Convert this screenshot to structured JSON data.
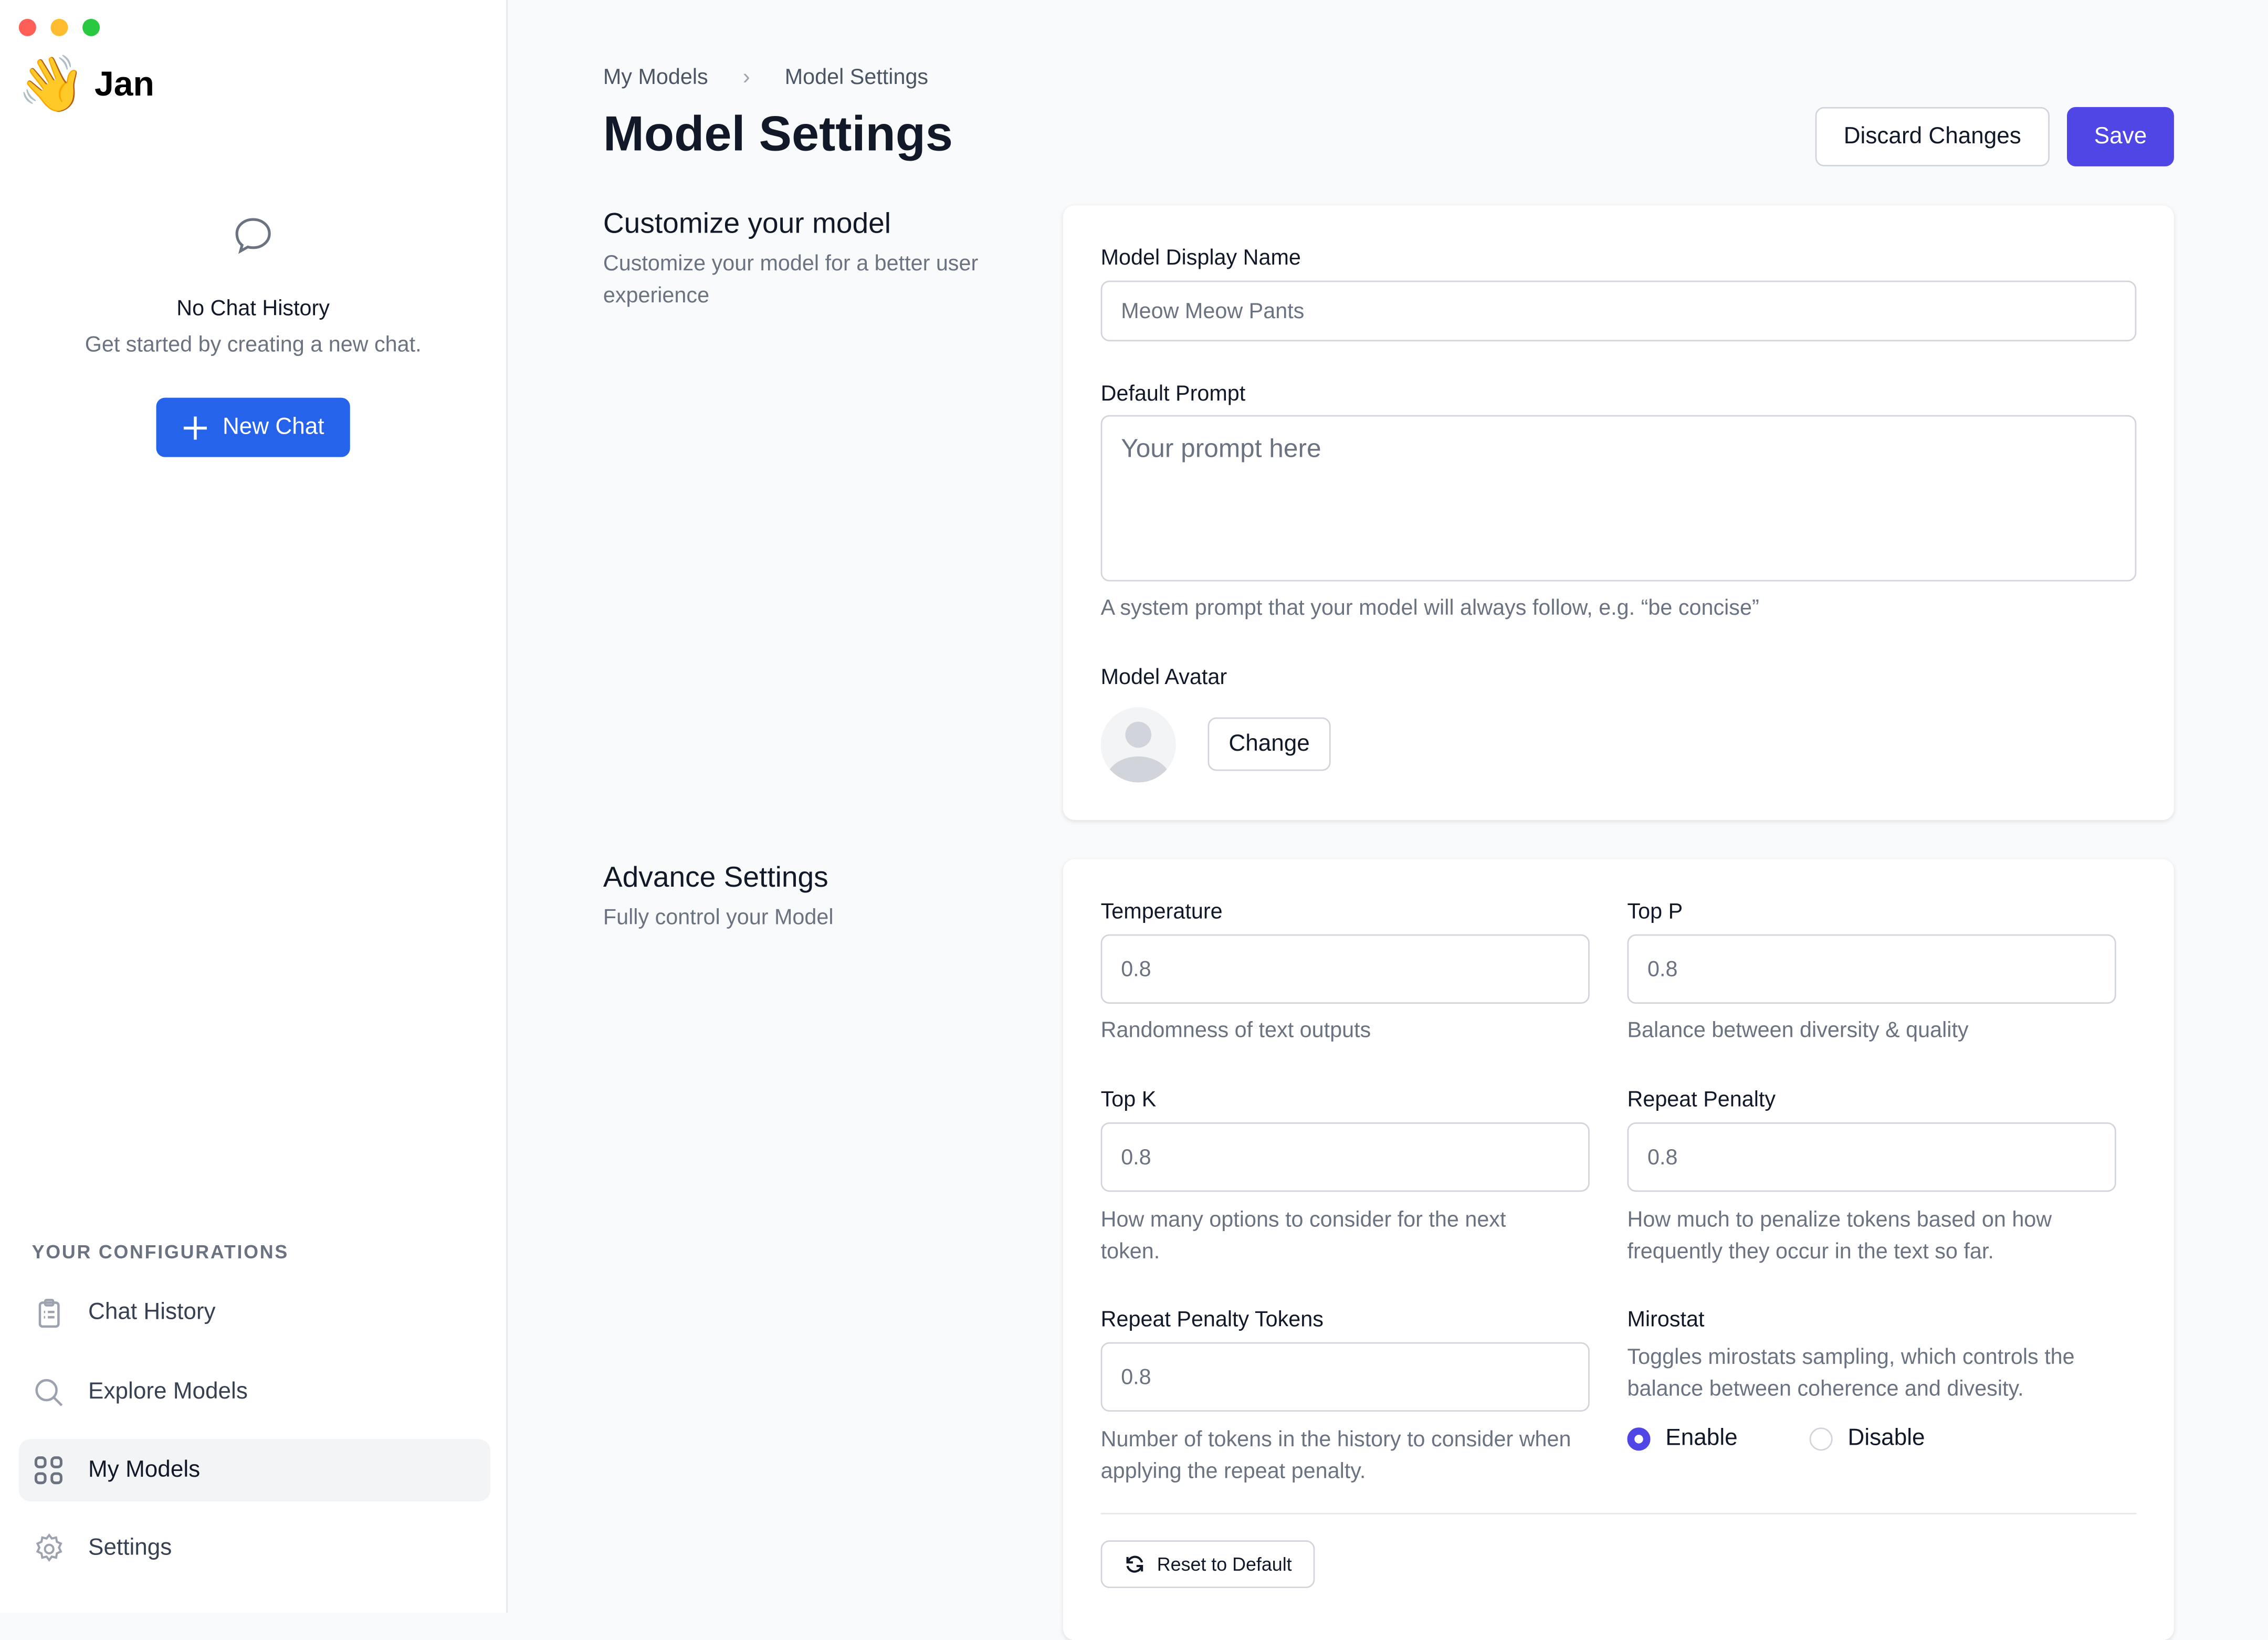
{
  "window": {
    "controls": [
      "#ff5f57",
      "#febc2e",
      "#28c840"
    ]
  },
  "sidebar": {
    "app_name": "Jan",
    "logo_emoji": "👋",
    "empty_title": "No Chat History",
    "empty_subtitle": "Get started by creating a new chat.",
    "new_chat": "New Chat",
    "section": "YOUR CONFIGURATIONS",
    "items": [
      {
        "label": "Chat History",
        "icon": "clipboard-icon"
      },
      {
        "label": "Explore Models",
        "icon": "search-icon"
      },
      {
        "label": "My Models",
        "icon": "grid-icon",
        "active": true
      },
      {
        "label": "Settings",
        "icon": "gear-icon"
      }
    ]
  },
  "header": {
    "breadcrumb": [
      "My Models",
      "Model Settings"
    ],
    "title": "Model Settings",
    "discard": "Discard Changes",
    "save": "Save"
  },
  "customize": {
    "title": "Customize your model",
    "subtitle": "Customize your model for a better user experience",
    "display_name_label": "Model Display Name",
    "display_name_value": "Meow Meow Pants",
    "prompt_label": "Default Prompt",
    "prompt_placeholder": "Your prompt here",
    "prompt_hint": "A system prompt that your model will always follow, e.g. “be concise”",
    "avatar_label": "Model Avatar",
    "change": "Change"
  },
  "advanced": {
    "title": "Advance Settings",
    "subtitle": "Fully control your Model",
    "temperature": {
      "label": "Temperature",
      "value": "0.8",
      "hint": "Randomness of text outputs"
    },
    "top_p": {
      "label": "Top P",
      "value": "0.8",
      "hint": "Balance between diversity & quality"
    },
    "top_k": {
      "label": "Top K",
      "value": "0.8",
      "hint": "How many options to consider for the next token."
    },
    "repeat_penalty": {
      "label": "Repeat Penalty",
      "value": "0.8",
      "hint": "How much to penalize tokens based on how frequently they occur in the text so far."
    },
    "repeat_tokens": {
      "label": "Repeat Penalty Tokens",
      "value": "0.8",
      "hint": "Number of tokens in the history to consider when applying the repeat penalty."
    },
    "mirostat": {
      "label": "Mirostat",
      "hint": "Toggles mirostats sampling, which controls the balance between coherence and divesity.",
      "enable": "Enable",
      "disable": "Disable",
      "selected": "Enable"
    },
    "reset": "Reset to Default"
  },
  "colors": {
    "primary": "#4f46e5",
    "blue": "#2563eb"
  }
}
